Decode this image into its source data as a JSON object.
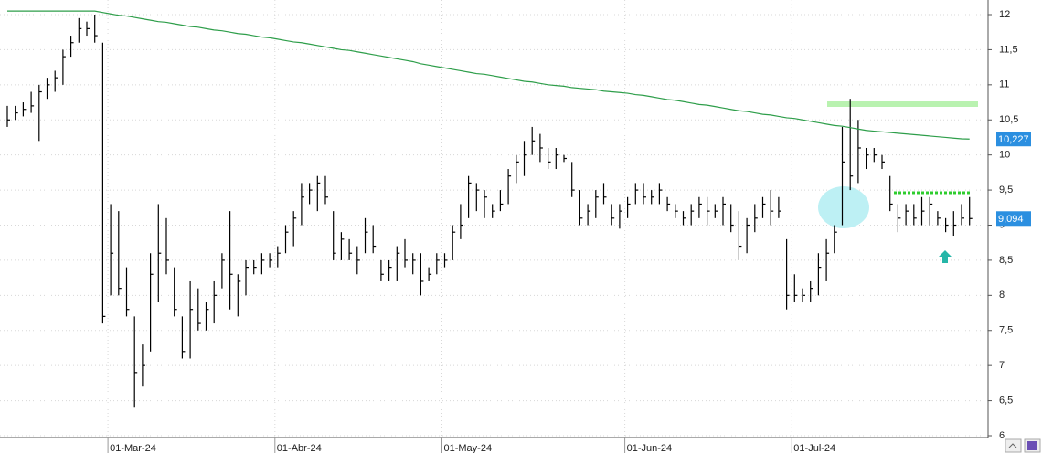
{
  "chart_data": {
    "type": "ohlc",
    "categories": [
      null,
      null,
      null,
      null,
      null,
      null,
      null,
      null,
      null,
      null,
      null,
      null,
      null,
      "01-Mar-24",
      null,
      null,
      null,
      null,
      null,
      null,
      null,
      null,
      null,
      null,
      null,
      null,
      null,
      null,
      null,
      null,
      null,
      null,
      null,
      null,
      "01-Abr-24",
      null,
      null,
      null,
      null,
      null,
      null,
      null,
      null,
      null,
      null,
      null,
      null,
      null,
      null,
      null,
      null,
      null,
      null,
      null,
      null,
      "01-May-24",
      null,
      null,
      null,
      null,
      null,
      null,
      null,
      null,
      null,
      null,
      null,
      null,
      null,
      null,
      null,
      null,
      null,
      null,
      null,
      null,
      null,
      null,
      "01-Jun-24",
      null,
      null,
      null,
      null,
      null,
      null,
      null,
      null,
      null,
      null,
      null,
      null,
      null,
      null,
      null,
      null,
      null,
      null,
      null,
      null,
      "01-Jul-24",
      null,
      null,
      null,
      null,
      null,
      null,
      null,
      null,
      null,
      null,
      null,
      null,
      null,
      null,
      null,
      null,
      null,
      null,
      null,
      null,
      null,
      null
    ],
    "ohlc": {
      "color": "#000000",
      "high": [
        10.7,
        10.7,
        10.75,
        10.9,
        11.0,
        11.1,
        11.2,
        11.5,
        11.7,
        11.95,
        11.9,
        12.0,
        11.6,
        9.3,
        9.2,
        8.4,
        7.7,
        7.3,
        8.6,
        9.3,
        9.1,
        8.4,
        7.7,
        8.2,
        8.1,
        7.9,
        8.2,
        8.6,
        9.2,
        8.3,
        8.5,
        8.5,
        8.6,
        8.6,
        8.7,
        9.0,
        9.2,
        9.6,
        9.6,
        9.7,
        9.7,
        9.2,
        8.9,
        8.8,
        8.7,
        9.1,
        9.0,
        8.5,
        8.5,
        8.7,
        8.8,
        8.6,
        8.6,
        8.4,
        8.6,
        8.6,
        9.0,
        9.3,
        9.7,
        9.6,
        9.5,
        9.3,
        9.5,
        9.8,
        10.0,
        10.2,
        10.4,
        10.3,
        10.1,
        10.1,
        10.0,
        9.9,
        9.5,
        9.3,
        9.5,
        9.6,
        9.3,
        9.3,
        9.4,
        9.6,
        9.6,
        9.5,
        9.6,
        9.4,
        9.3,
        9.2,
        9.3,
        9.4,
        9.4,
        9.3,
        9.4,
        9.3,
        9.2,
        9.1,
        9.3,
        9.4,
        9.5,
        9.4,
        8.8,
        8.3,
        8.1,
        8.2,
        8.6,
        8.8,
        9.0,
        10.4,
        10.8,
        10.5,
        10.1,
        10.1,
        10.0,
        9.7,
        9.3,
        9.3,
        9.3,
        9.4,
        9.4,
        9.2,
        9.1,
        9.2,
        9.3,
        9.4
      ],
      "low": [
        10.4,
        10.5,
        10.55,
        10.6,
        10.2,
        10.8,
        10.9,
        11.0,
        11.4,
        11.6,
        11.7,
        11.6,
        7.6,
        8.0,
        8.0,
        7.7,
        6.4,
        6.7,
        7.2,
        7.9,
        8.3,
        7.7,
        7.1,
        7.1,
        7.5,
        7.5,
        7.6,
        8.1,
        7.8,
        7.7,
        8.0,
        8.3,
        8.3,
        8.4,
        8.4,
        8.6,
        8.7,
        9.0,
        9.3,
        9.2,
        9.3,
        8.5,
        8.5,
        8.5,
        8.3,
        8.6,
        8.6,
        8.2,
        8.2,
        8.2,
        8.4,
        8.3,
        8.0,
        8.2,
        8.3,
        8.4,
        8.5,
        8.8,
        9.1,
        9.2,
        9.1,
        9.1,
        9.2,
        9.3,
        9.6,
        9.7,
        10.0,
        9.9,
        9.8,
        9.8,
        9.9,
        9.4,
        9.0,
        9.0,
        9.1,
        9.3,
        9.0,
        8.95,
        9.1,
        9.3,
        9.3,
        9.3,
        9.3,
        9.2,
        9.1,
        9.0,
        9.0,
        9.1,
        9.0,
        9.1,
        9.0,
        8.9,
        8.5,
        8.6,
        8.9,
        9.1,
        9.0,
        9.1,
        7.8,
        7.9,
        7.9,
        7.9,
        8.0,
        8.2,
        8.6,
        9.0,
        9.5,
        9.6,
        9.8,
        9.9,
        9.8,
        9.2,
        8.9,
        9.0,
        9.0,
        9.0,
        9.0,
        9.0,
        8.9,
        8.85,
        9.0,
        9.0
      ],
      "close": [
        10.5,
        10.6,
        10.65,
        10.7,
        10.9,
        11.0,
        11.1,
        11.4,
        11.6,
        11.8,
        11.8,
        11.7,
        7.7,
        8.6,
        8.1,
        7.8,
        6.9,
        7.0,
        8.3,
        8.6,
        8.5,
        7.8,
        7.2,
        7.8,
        7.6,
        7.8,
        8.0,
        8.5,
        8.3,
        8.2,
        8.4,
        8.4,
        8.5,
        8.5,
        8.6,
        8.9,
        9.1,
        9.4,
        9.5,
        9.6,
        9.4,
        8.6,
        8.8,
        8.6,
        8.5,
        8.9,
        8.7,
        8.3,
        8.4,
        8.6,
        8.5,
        8.5,
        8.2,
        8.3,
        8.5,
        8.5,
        8.9,
        9.0,
        9.6,
        9.5,
        9.4,
        9.2,
        9.3,
        9.7,
        9.9,
        10.0,
        10.2,
        10.1,
        9.9,
        10.0,
        9.95,
        9.5,
        9.1,
        9.2,
        9.4,
        9.4,
        9.1,
        9.2,
        9.3,
        9.5,
        9.4,
        9.4,
        9.5,
        9.3,
        9.2,
        9.1,
        9.2,
        9.3,
        9.2,
        9.2,
        9.3,
        9.0,
        8.7,
        9.0,
        9.1,
        9.3,
        9.2,
        9.2,
        8.0,
        8.0,
        8.0,
        8.1,
        8.4,
        8.6,
        8.9,
        9.9,
        9.7,
        10.1,
        10.0,
        10.0,
        9.9,
        9.3,
        9.1,
        9.2,
        9.1,
        9.2,
        9.3,
        9.1,
        9.0,
        9.0,
        9.1,
        9.094
      ],
      "last_label": "9,094"
    },
    "moving_average": {
      "color": "#2e9e4a",
      "values": [
        12.05,
        12.05,
        12.05,
        12.05,
        12.05,
        12.05,
        12.05,
        12.05,
        12.05,
        12.05,
        12.05,
        12.05,
        12.03,
        12.01,
        11.99,
        11.98,
        11.96,
        11.94,
        11.92,
        11.9,
        11.89,
        11.87,
        11.85,
        11.83,
        11.82,
        11.8,
        11.78,
        11.77,
        11.75,
        11.73,
        11.72,
        11.7,
        11.68,
        11.67,
        11.65,
        11.63,
        11.61,
        11.6,
        11.58,
        11.56,
        11.54,
        11.52,
        11.5,
        11.49,
        11.47,
        11.45,
        11.43,
        11.41,
        11.39,
        11.37,
        11.35,
        11.33,
        11.3,
        11.28,
        11.26,
        11.24,
        11.22,
        11.2,
        11.18,
        11.16,
        11.15,
        11.13,
        11.11,
        11.09,
        11.07,
        11.05,
        11.04,
        11.02,
        11.0,
        10.99,
        10.98,
        10.96,
        10.95,
        10.94,
        10.93,
        10.91,
        10.9,
        10.89,
        10.88,
        10.86,
        10.85,
        10.83,
        10.81,
        10.79,
        10.78,
        10.76,
        10.74,
        10.72,
        10.71,
        10.69,
        10.67,
        10.65,
        10.63,
        10.62,
        10.6,
        10.58,
        10.57,
        10.55,
        10.53,
        10.52,
        10.5,
        10.48,
        10.46,
        10.44,
        10.42,
        10.41,
        10.39,
        10.37,
        10.35,
        10.34,
        10.33,
        10.32,
        10.31,
        10.3,
        10.29,
        10.28,
        10.27,
        10.26,
        10.25,
        10.24,
        10.23,
        10.227
      ],
      "last_label": "10,227"
    },
    "ylim": [
      6,
      12
    ],
    "yticks": [
      6,
      {
        "value": 6.5,
        "label": "6,5"
      },
      7,
      {
        "value": 7.5,
        "label": "7,5"
      },
      8,
      {
        "value": 8.5,
        "label": "8,5"
      },
      9,
      {
        "value": 9.5,
        "label": "9,5"
      },
      10,
      {
        "value": 10.5,
        "label": "10,5"
      },
      11,
      {
        "value": 11.5,
        "label": "11,5"
      },
      12
    ],
    "grid": true,
    "last_label_color": "#2b8fe0"
  }
}
